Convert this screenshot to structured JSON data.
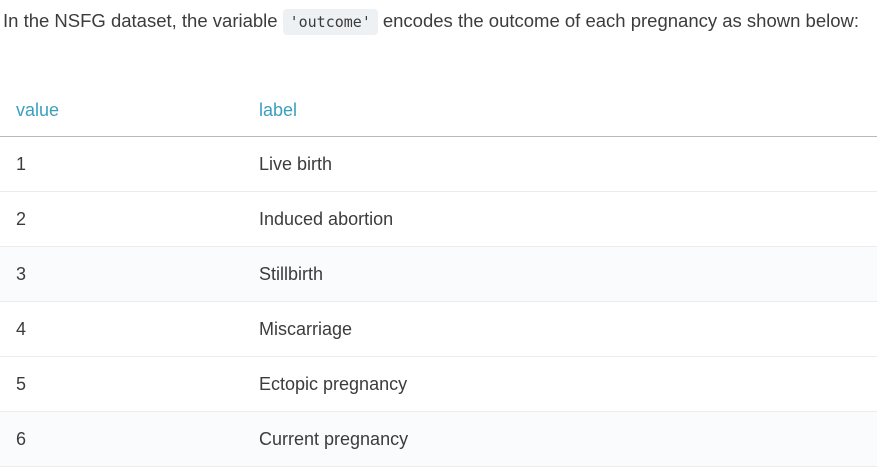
{
  "intro": {
    "before": "In the NSFG dataset, the variable",
    "code": "'outcome'",
    "after": "encodes the outcome of each pregnancy as shown below:"
  },
  "table": {
    "headers": {
      "value": "value",
      "label": "label"
    },
    "rows": [
      {
        "value": "1",
        "label": "Live birth"
      },
      {
        "value": "2",
        "label": "Induced abortion"
      },
      {
        "value": "3",
        "label": "Stillbirth"
      },
      {
        "value": "4",
        "label": "Miscarriage"
      },
      {
        "value": "5",
        "label": "Ectopic pregnancy"
      },
      {
        "value": "6",
        "label": "Current pregnancy"
      }
    ]
  }
}
